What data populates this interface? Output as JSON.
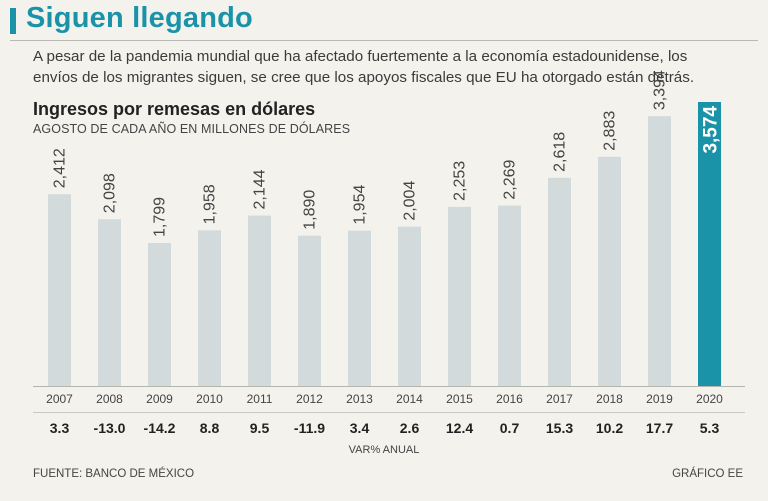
{
  "header": {
    "title": "Siguen llegando",
    "intro": "A pesar de la pandemia mundial que ha afectado fuertemente a la economía estadounidense, los envíos de los migrantes siguen, se cree que los apoyos fiscales que EU ha otorgado están detrás."
  },
  "chart_data": {
    "type": "bar",
    "title": "Ingresos por remesas en dólares",
    "subtitle": "AGOSTO DE CADA AÑO EN MILLONES DE DÓLARES",
    "categories": [
      "2007",
      "2008",
      "2009",
      "2010",
      "2011",
      "2012",
      "2013",
      "2014",
      "2015",
      "2016",
      "2017",
      "2018",
      "2019",
      "2020"
    ],
    "values": [
      2412,
      2098,
      1799,
      1958,
      2144,
      1890,
      1954,
      2004,
      2253,
      2269,
      2618,
      2883,
      3394,
      3574
    ],
    "value_labels": [
      "2,412",
      "2,098",
      "1,799",
      "1,958",
      "2,144",
      "1,890",
      "1,954",
      "2,004",
      "2,253",
      "2,269",
      "2,618",
      "2,883",
      "3,394",
      "3,574"
    ],
    "highlight_index": 13,
    "variation_labels": [
      "3.3",
      "-13.0",
      "-14.2",
      "8.8",
      "9.5",
      "-11.9",
      "3.4",
      "2.6",
      "12.4",
      "0.7",
      "15.3",
      "10.2",
      "17.7",
      "5.3"
    ],
    "variation_caption": "VAR% ANUAL",
    "colors": {
      "bar": "#d3dadb",
      "highlight": "#1a93a8",
      "background": "#f3f2ed"
    }
  },
  "footer": {
    "source": "FUENTE: BANCO DE MÉXICO",
    "credit": "GRÁFICO EE"
  }
}
